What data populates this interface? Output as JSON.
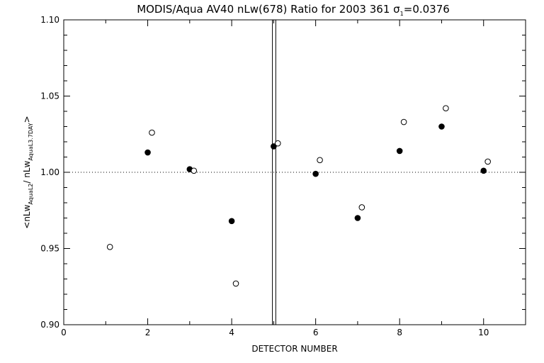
{
  "chart_data": {
    "type": "scatter",
    "title": {
      "main": "MODIS/Aqua AV40 nLw(678) Ratio for 2003 361 ",
      "sigma_symbol": "σ",
      "sigma_sub": "1",
      "sigma_value": "=0.0376"
    },
    "xlabel": "DETECTOR NUMBER",
    "ylabel": {
      "open": "<nLw",
      "sub1": "AquaL2",
      "mid": "/ nLw",
      "sub2": "AquaL3.7DAY",
      "close": ">"
    },
    "xlim": [
      0,
      11
    ],
    "ylim": [
      0.9,
      1.1
    ],
    "x_ticks": [
      0,
      2,
      4,
      6,
      8,
      10
    ],
    "x_tick_labels": [
      "0",
      "2",
      "4",
      "6",
      "8",
      "10"
    ],
    "y_ticks": [
      0.9,
      0.95,
      1.0,
      1.05,
      1.1
    ],
    "y_tick_labels": [
      "0.90",
      "0.95",
      "1.00",
      "1.05",
      "1.10"
    ],
    "reference_line_y": 1.0,
    "vertical_lines_x": [
      4.97,
      5.05
    ],
    "series": [
      {
        "marker": "filled-circle",
        "x": [
          2,
          3,
          4,
          5,
          6,
          7,
          8,
          9,
          10
        ],
        "y": [
          1.013,
          1.002,
          0.968,
          1.017,
          0.999,
          0.97,
          1.014,
          1.03,
          1.001
        ]
      },
      {
        "marker": "open-circle",
        "x": [
          1.1,
          2.1,
          3.1,
          4.1,
          5.1,
          6.1,
          7.1,
          8.1,
          9.1,
          10.1
        ],
        "y": [
          0.951,
          1.026,
          1.001,
          0.927,
          1.019,
          1.008,
          0.977,
          1.033,
          1.042,
          1.007
        ]
      }
    ]
  }
}
